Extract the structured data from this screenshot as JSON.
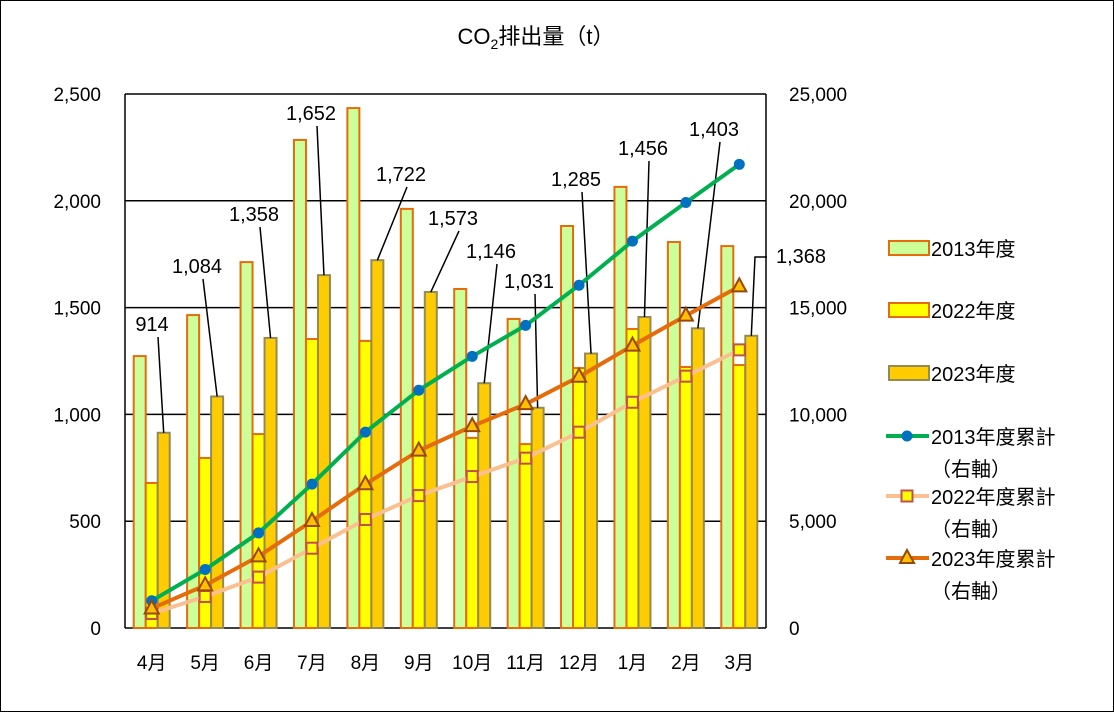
{
  "chart_data": {
    "type": "bar",
    "title": "CO2排出量(t)",
    "title_parts": {
      "main": "CO",
      "sub": "2",
      "rest": "排出量（t）"
    },
    "categories": [
      "4月",
      "5月",
      "6月",
      "7月",
      "8月",
      "9月",
      "10月",
      "11月",
      "12月",
      "1月",
      "2月",
      "3月"
    ],
    "ylim_left": [
      0,
      2500
    ],
    "yticks_left": [
      "0",
      "500",
      "1,000",
      "1,500",
      "2,000",
      "2,500"
    ],
    "ylim_right": [
      0,
      25000
    ],
    "yticks_right": [
      "0",
      "5,000",
      "10,000",
      "15,000",
      "20,000",
      "25,000"
    ],
    "grid": true,
    "legend_position": "right",
    "series": [
      {
        "name": "2013年度",
        "type": "bar",
        "axis": "left",
        "fill": "#ccff99",
        "stroke": "#e46c0a",
        "values": [
          1273,
          1465,
          1713,
          2285,
          2434,
          1962,
          1587,
          1447,
          1882,
          2065,
          1807,
          1788
        ]
      },
      {
        "name": "2022年度",
        "type": "bar",
        "axis": "left",
        "fill": "#ffff00",
        "stroke": "#e46c0a",
        "values": [
          679,
          796,
          908,
          1353,
          1344,
          1120,
          890,
          861,
          1217,
          1400,
          1222,
          1231
        ]
      },
      {
        "name": "2023年度",
        "type": "bar",
        "axis": "left",
        "fill": "#ffcc00",
        "stroke": "#948a54",
        "values": [
          914,
          1084,
          1358,
          1652,
          1722,
          1573,
          1146,
          1031,
          1285,
          1456,
          1403,
          1368
        ],
        "data_labels": [
          "914",
          "1,084",
          "1,358",
          "1,652",
          "1,722",
          "1,573",
          "1,146",
          "1,031",
          "1,285",
          "1,456",
          "1,403",
          "1,368"
        ]
      },
      {
        "name": "2013年度累計",
        "name2": "（右軸）",
        "type": "line",
        "axis": "right",
        "color": "#00b050",
        "marker": "circle",
        "marker_fill": "#0070c0",
        "values": [
          1273,
          2738,
          4451,
          6736,
          9170,
          11132,
          12719,
          14166,
          16048,
          18113,
          19920,
          21708
        ]
      },
      {
        "name": "2022年度累計",
        "name2": "（右軸）",
        "type": "line",
        "axis": "right",
        "color": "#fac090",
        "marker": "square",
        "marker_fill": "#ffff00",
        "marker_stroke": "#c0504d",
        "values": [
          679,
          1475,
          2383,
          3736,
          5080,
          6200,
          7090,
          7951,
          9168,
          10568,
          11790,
          13021
        ]
      },
      {
        "name": "2023年度累計",
        "name2": "（右軸）",
        "type": "line",
        "axis": "right",
        "color": "#e46c0a",
        "marker": "triangle",
        "marker_fill": "#ffc000",
        "marker_stroke": "#984807",
        "values": [
          914,
          1998,
          3356,
          5008,
          6730,
          8303,
          9449,
          10480,
          11765,
          13221,
          14624,
          15992
        ]
      }
    ]
  }
}
